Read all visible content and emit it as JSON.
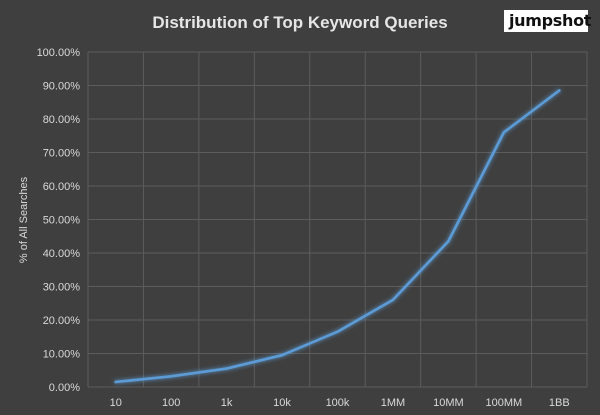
{
  "brand": {
    "logo_text": "jumpshot"
  },
  "colors": {
    "background": "#3f3f3f",
    "grid": "#5c5c5c",
    "line": "#5b9bd5",
    "text": "#d9d9d9",
    "title": "#e6e6e6"
  },
  "chart_data": {
    "type": "line",
    "title": "Distribution of Top Keyword Queries",
    "xlabel": "",
    "ylabel": "% of All Searches",
    "categories": [
      "10",
      "100",
      "1k",
      "10k",
      "100k",
      "1MM",
      "10MM",
      "100MM",
      "1BB"
    ],
    "y_ticks": [
      "0.00%",
      "10.00%",
      "20.00%",
      "30.00%",
      "40.00%",
      "50.00%",
      "60.00%",
      "70.00%",
      "80.00%",
      "90.00%",
      "100.00%"
    ],
    "ylim": [
      0,
      100
    ],
    "grid": true,
    "legend": "none",
    "series": [
      {
        "values": [
          1.5,
          3.2,
          5.5,
          9.5,
          16.5,
          26.0,
          43.5,
          76.0,
          88.5
        ]
      }
    ]
  }
}
